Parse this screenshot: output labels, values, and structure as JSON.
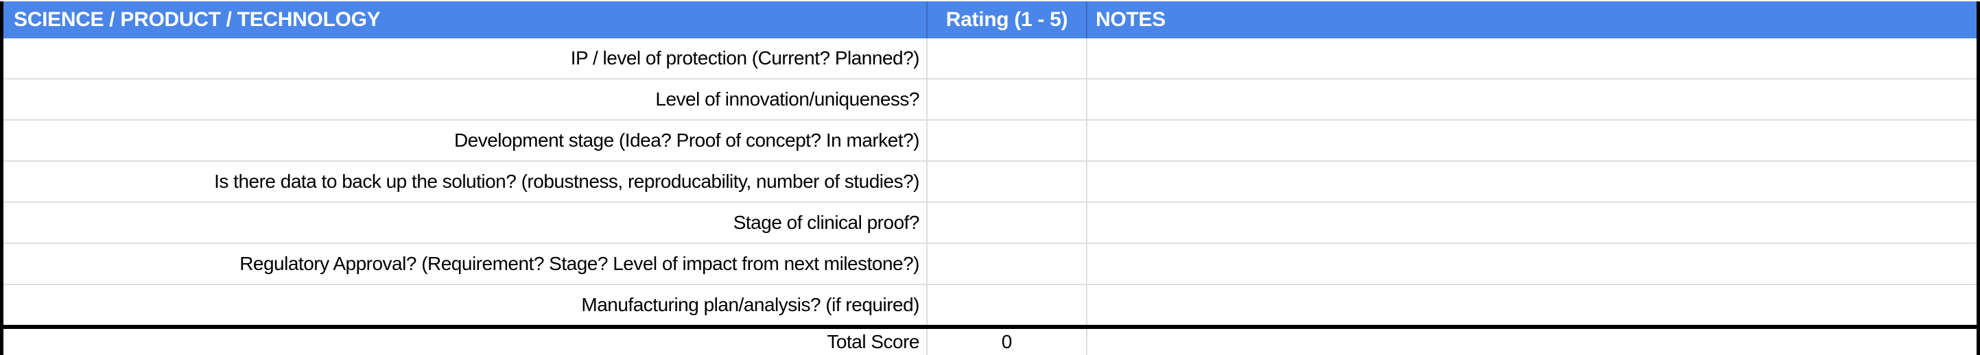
{
  "table": {
    "header": {
      "section": "SCIENCE / PRODUCT / TECHNOLOGY",
      "rating": "Rating (1 - 5)",
      "notes": "NOTES"
    },
    "rows": [
      {
        "criterion": "IP / level of protection (Current? Planned?)",
        "rating": "",
        "notes": ""
      },
      {
        "criterion": "Level of innovation/uniqueness?",
        "rating": "",
        "notes": ""
      },
      {
        "criterion": "Development stage (Idea? Proof of concept? In market?)",
        "rating": "",
        "notes": ""
      },
      {
        "criterion": "Is there data to back up the solution? (robustness, reproducability, number of studies?)",
        "rating": "",
        "notes": ""
      },
      {
        "criterion": "Stage of clinical proof?",
        "rating": "",
        "notes": ""
      },
      {
        "criterion": "Regulatory Approval? (Requirement? Stage? Level of impact from next milestone?)",
        "rating": "",
        "notes": ""
      },
      {
        "criterion": "Manufacturing plan/analysis? (if required)",
        "rating": "",
        "notes": ""
      }
    ],
    "footer": {
      "label": "Total Score",
      "total": "0",
      "notes": ""
    }
  },
  "colors": {
    "header_bg": "#4a86e8",
    "header_divider": "#3b6cc2",
    "header_text": "#ffffff",
    "gridline": "#dedede",
    "border": "#000000",
    "text": "#000000"
  }
}
